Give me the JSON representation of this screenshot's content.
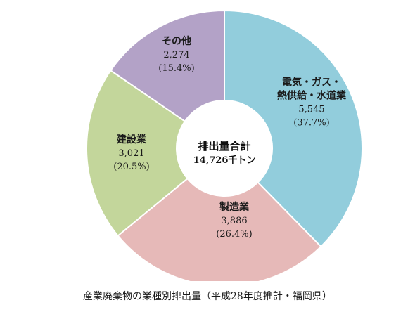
{
  "chart_data": {
    "type": "pie",
    "donut": true,
    "center_label": {
      "line1": "排出量合計",
      "line2": "14,726千トン"
    },
    "slices": [
      {
        "name_lines": [
          "電気・ガス・",
          "熱供給・水道業"
        ],
        "value": 5545,
        "value_label": "5,545",
        "percent_label": "(37.7%)",
        "color": "#92cddc"
      },
      {
        "name_lines": [
          "製造業"
        ],
        "value": 3886,
        "value_label": "3,886",
        "percent_label": "(26.4%)",
        "color": "#e6b9b8"
      },
      {
        "name_lines": [
          "建設業"
        ],
        "value": 3021,
        "value_label": "3,021",
        "percent_label": "(20.5%)",
        "color": "#c3d69b"
      },
      {
        "name_lines": [
          "その他"
        ],
        "value": 2274,
        "value_label": "2,274",
        "percent_label": "(15.4%)",
        "color": "#b3a2c7"
      }
    ],
    "caption": "産業廃棄物の業種別排出量（平成28年度推計・福岡県）"
  }
}
